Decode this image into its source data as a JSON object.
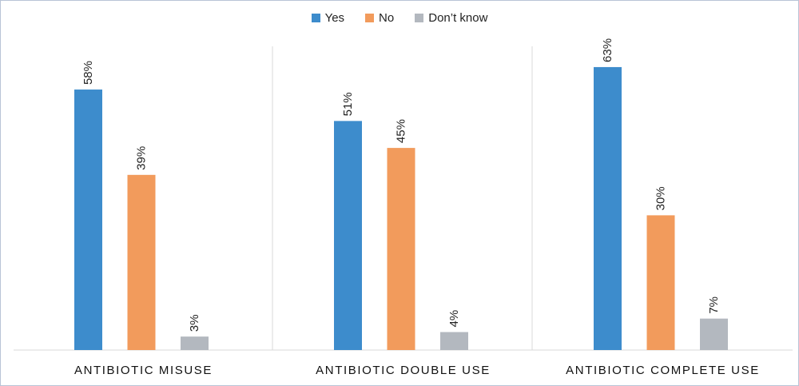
{
  "chart_data": {
    "type": "bar",
    "categories": [
      "ANTIBIOTIC MISUSE",
      "ANTIBIOTIC DOUBLE USE",
      "ANTIBIOTIC COMPLETE USE"
    ],
    "series": [
      {
        "name": "Yes",
        "values": [
          58,
          51,
          63
        ],
        "labels": [
          "58%",
          "51%",
          "63%"
        ],
        "color": "#3d8ccc"
      },
      {
        "name": "No",
        "values": [
          39,
          45,
          30
        ],
        "labels": [
          "39%",
          "45%",
          "30%"
        ],
        "color": "#f29b5c"
      },
      {
        "name": "Don’t know",
        "values": [
          3,
          4,
          7
        ],
        "labels": [
          "3%",
          "4%",
          "7%"
        ],
        "color": "#b3b8bf"
      }
    ],
    "ylim": [
      0,
      70
    ],
    "legend": "top-center",
    "grid": false
  }
}
